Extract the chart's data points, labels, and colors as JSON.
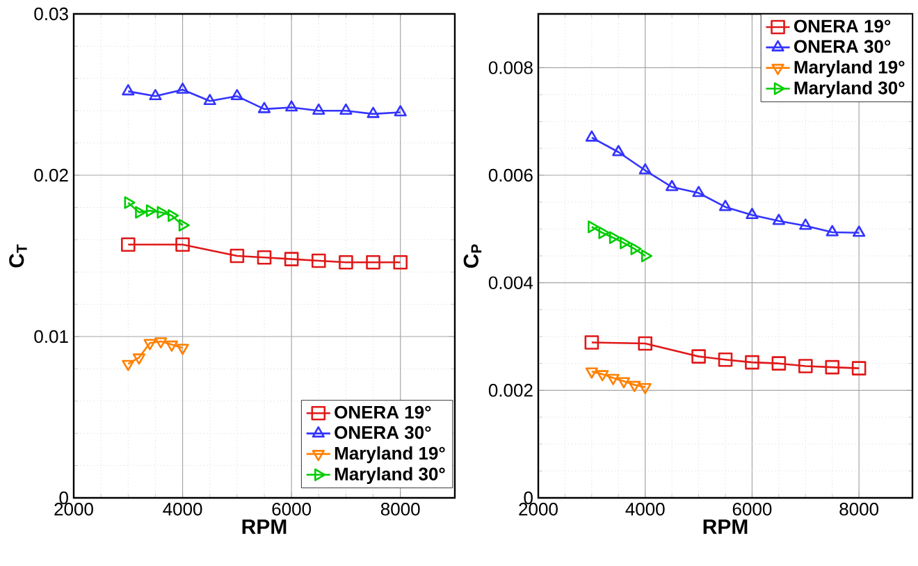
{
  "chart_data": [
    {
      "type": "line",
      "xlabel": "RPM",
      "ylabel": "C$_{T}$",
      "xlim": [
        2000,
        9000
      ],
      "ylim": [
        0,
        0.03
      ],
      "xticks": [
        2000,
        4000,
        6000,
        8000
      ],
      "yticks": [
        0,
        0.01,
        0.02,
        0.03
      ],
      "grid": true,
      "legend": "bottom right",
      "series": [
        {
          "name": "ONERA 19°",
          "color": "#e01818",
          "marker": "square",
          "x": [
            3000,
            4000,
            5000,
            5500,
            6000,
            6500,
            7000,
            7500,
            8000
          ],
          "values": [
            0.0157,
            0.0157,
            0.015,
            0.0149,
            0.0148,
            0.0147,
            0.0146,
            0.0146,
            0.0146
          ]
        },
        {
          "name": "ONERA 30°",
          "color": "#3333ff",
          "marker": "triangle",
          "x": [
            3000,
            3500,
            4000,
            4500,
            5000,
            5500,
            6000,
            6500,
            7000,
            7500,
            8000
          ],
          "values": [
            0.0252,
            0.0249,
            0.0253,
            0.0246,
            0.0249,
            0.0241,
            0.0242,
            0.024,
            0.024,
            0.0238,
            0.0239
          ]
        },
        {
          "name": "Maryland 19°",
          "color": "#ff8000",
          "marker": "triangle down",
          "x": [
            3000,
            3200,
            3400,
            3600,
            3800,
            4000
          ],
          "values": [
            0.0083,
            0.0087,
            0.0096,
            0.0097,
            0.0095,
            0.0093
          ]
        },
        {
          "name": "Maryland 30°",
          "color": "#00cc00",
          "marker": "triangle right",
          "x": [
            3000,
            3200,
            3400,
            3600,
            3800,
            4000
          ],
          "values": [
            0.0183,
            0.0177,
            0.0178,
            0.0177,
            0.0175,
            0.0169
          ]
        }
      ]
    },
    {
      "type": "line",
      "xlabel": "RPM",
      "ylabel": "C$_{P}$",
      "xlim": [
        2000,
        9000
      ],
      "ylim": [
        0,
        0.009
      ],
      "xticks": [
        2000,
        4000,
        6000,
        8000
      ],
      "yticks": [
        0,
        0.002,
        0.004,
        0.006,
        0.008
      ],
      "grid": true,
      "legend": "top right",
      "series": [
        {
          "name": "ONERA 19°",
          "color": "#e01818",
          "marker": "square",
          "x": [
            3000,
            4000,
            5000,
            5500,
            6000,
            6500,
            7000,
            7500,
            8000
          ],
          "values": [
            0.00289,
            0.00287,
            0.00263,
            0.00257,
            0.00252,
            0.0025,
            0.00245,
            0.00243,
            0.00241
          ]
        },
        {
          "name": "ONERA 30°",
          "color": "#3333ff",
          "marker": "triangle",
          "x": [
            3000,
            3500,
            4000,
            4500,
            5000,
            5500,
            6000,
            6500,
            7000,
            7500,
            8000
          ],
          "values": [
            0.0067,
            0.00643,
            0.00609,
            0.00578,
            0.00567,
            0.00541,
            0.00526,
            0.00515,
            0.00506,
            0.00494,
            0.00493
          ]
        },
        {
          "name": "Maryland 19°",
          "color": "#ff8000",
          "marker": "triangle down",
          "x": [
            3000,
            3200,
            3400,
            3600,
            3800,
            4000
          ],
          "values": [
            0.00235,
            0.0023,
            0.00223,
            0.00217,
            0.0021,
            0.00206
          ]
        },
        {
          "name": "Maryland 30°",
          "color": "#00cc00",
          "marker": "triangle right",
          "x": [
            3000,
            3200,
            3400,
            3600,
            3800,
            4000
          ],
          "values": [
            0.00504,
            0.00493,
            0.00484,
            0.00474,
            0.00463,
            0.0045
          ]
        }
      ]
    }
  ]
}
